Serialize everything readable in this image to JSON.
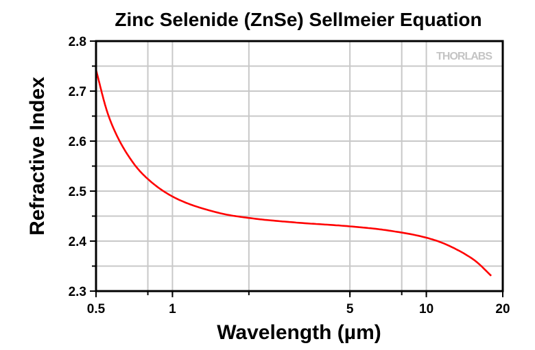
{
  "chart_data": {
    "type": "line",
    "title": "Zinc Selenide (ZnSe) Sellmeier Equation",
    "xlabel": "Wavelength (µm)",
    "ylabel": "Refractive Index",
    "xscale": "log",
    "xlim": [
      0.5,
      20
    ],
    "ylim": [
      2.3,
      2.8
    ],
    "xticks": [
      0.5,
      1,
      5,
      10,
      20
    ],
    "xtick_labels": [
      "0.5",
      "1",
      "5",
      "10",
      "20"
    ],
    "x_gridlines": [
      0.8,
      1,
      2,
      5,
      8,
      10
    ],
    "yticks": [
      2.3,
      2.4,
      2.5,
      2.6,
      2.7,
      2.8
    ],
    "ytick_labels": [
      "2.3",
      "2.4",
      "2.5",
      "2.6",
      "2.7",
      "2.8"
    ],
    "grid": true,
    "watermark": "THORLABS",
    "series": [
      {
        "name": "ZnSe",
        "color": "#ff0000",
        "x": [
          0.5,
          0.55,
          0.6,
          0.7,
          0.8,
          1,
          1.5,
          2,
          3,
          5,
          7,
          10,
          12,
          15,
          16,
          18
        ],
        "y": [
          2.7426,
          2.6628,
          2.6141,
          2.5567,
          2.5242,
          2.4892,
          2.4572,
          2.4463,
          2.4375,
          2.4295,
          2.4216,
          2.4068,
          2.393,
          2.3665,
          2.3557,
          2.3306
        ]
      }
    ]
  }
}
